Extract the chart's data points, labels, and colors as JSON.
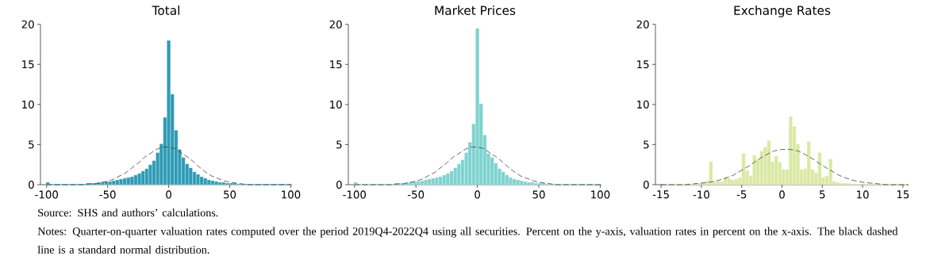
{
  "chart_data": [
    {
      "type": "histogram",
      "title": "Total",
      "xlim": [
        -105,
        101
      ],
      "xticks": [
        -100,
        -50,
        0,
        50,
        100
      ],
      "ylim": [
        0,
        20
      ],
      "yticks": [
        0,
        5,
        10,
        15,
        20
      ],
      "annotations": [
        "Source: SHS and authors’ calculations.",
        "Notes: Quarter-on-quarter valuation rates computed over the period 2019Q4-2022Q4 using all securities. Percent on the y-axis, valuation rates in percent on the x-axis. The black dashed line is a standard normal distribution."
      ],
      "series": [
        {
          "color": "#2f9bb5",
          "bins": [
            -100.5,
            -97.5,
            -94.5,
            -91.5,
            -88.5,
            -85.5,
            -82.5,
            -79.5,
            -76.5,
            -73.5,
            -70.5,
            -67.5,
            -64.5,
            -61.5,
            -58.5,
            -55.5,
            -52.5,
            -49.5,
            -46.5,
            -43.5,
            -40.5,
            -37.5,
            -34.5,
            -31.5,
            -28.5,
            -25.5,
            -22.5,
            -19.5,
            -16.5,
            -13.5,
            -10.5,
            -7.5,
            -4.5,
            -1.5,
            1.5,
            4.5,
            7.5,
            10.5,
            13.5,
            16.5,
            19.5,
            22.5,
            25.5,
            28.5,
            31.5,
            34.5,
            37.5,
            40.5,
            43.5,
            46.5,
            49.5,
            52.5,
            55.5,
            58.5,
            61.5,
            64.5,
            67.5,
            70.5,
            73.5,
            76.5,
            79.5,
            82.5,
            85.5,
            88.5,
            91.5,
            94.5,
            97.5,
            100.5
          ],
          "values": [
            0.3,
            0.1,
            0.1,
            0.1,
            0.1,
            0.1,
            0.1,
            0.1,
            0.1,
            0.1,
            0.1,
            0.2,
            0.2,
            0.2,
            0.3,
            0.3,
            0.4,
            0.4,
            0.5,
            0.6,
            0.7,
            0.8,
            0.9,
            1.0,
            1.2,
            1.4,
            1.7,
            2.0,
            2.5,
            3.0,
            4.0,
            5.1,
            8.4,
            18.0,
            11.3,
            6.8,
            4.4,
            3.4,
            2.6,
            2.1,
            1.6,
            1.3,
            1.0,
            0.8,
            0.6,
            0.5,
            0.4,
            0.3,
            0.3,
            0.2,
            0.2,
            0.2,
            0.1,
            0.1,
            0.1,
            0.1,
            0.1,
            0.1,
            0.1,
            0.1,
            0.1,
            0.1,
            0.1,
            0.1,
            0.1,
            0.1,
            0.1
          ]
        },
        {
          "type": "line",
          "color": "#404040",
          "line_style": "dashed",
          "x": [
            -100,
            -80,
            -70,
            -65,
            -60,
            -55,
            -50,
            -45,
            -40,
            -35,
            -30,
            -25,
            -20,
            -15,
            -10,
            -5,
            -2,
            0,
            5,
            10,
            15,
            20,
            25,
            30,
            35,
            40,
            45,
            50,
            55,
            60,
            65,
            70,
            80,
            100
          ],
          "values": [
            0.0,
            0.0,
            0.0,
            0.1,
            0.1,
            0.3,
            0.4,
            0.7,
            1.1,
            1.5,
            2.1,
            2.7,
            3.4,
            3.9,
            4.4,
            4.7,
            4.7,
            4.7,
            4.5,
            4.0,
            3.5,
            2.9,
            2.2,
            1.6,
            1.1,
            0.8,
            0.5,
            0.3,
            0.2,
            0.1,
            0.0,
            0.0,
            0.0,
            0.0
          ]
        }
      ]
    },
    {
      "type": "histogram",
      "title": "Market Prices",
      "xlim": [
        -105,
        101
      ],
      "xticks": [
        -100,
        -50,
        0,
        50,
        100
      ],
      "ylim": [
        0,
        20
      ],
      "yticks": [
        0,
        5,
        10,
        15,
        20
      ],
      "series": [
        {
          "color": "#7ed3cf",
          "bins": [
            -100.5,
            -97.5,
            -94.5,
            -91.5,
            -88.5,
            -85.5,
            -82.5,
            -79.5,
            -76.5,
            -73.5,
            -70.5,
            -67.5,
            -64.5,
            -61.5,
            -58.5,
            -55.5,
            -52.5,
            -49.5,
            -46.5,
            -43.5,
            -40.5,
            -37.5,
            -34.5,
            -31.5,
            -28.5,
            -25.5,
            -22.5,
            -19.5,
            -16.5,
            -13.5,
            -10.5,
            -7.5,
            -4.5,
            -1.5,
            1.5,
            4.5,
            7.5,
            10.5,
            13.5,
            16.5,
            19.5,
            22.5,
            25.5,
            28.5,
            31.5,
            34.5,
            37.5,
            40.5,
            43.5,
            46.5,
            49.5,
            52.5,
            55.5,
            58.5,
            61.5,
            64.5,
            67.5,
            70.5,
            73.5,
            76.5,
            79.5,
            82.5,
            85.5,
            88.5,
            91.5,
            94.5,
            97.5,
            100.5
          ],
          "values": [
            0.3,
            0.1,
            0.1,
            0.1,
            0.1,
            0.1,
            0.1,
            0.1,
            0.1,
            0.1,
            0.1,
            0.2,
            0.2,
            0.2,
            0.3,
            0.3,
            0.4,
            0.4,
            0.5,
            0.6,
            0.7,
            0.8,
            0.9,
            1.0,
            1.2,
            1.4,
            1.7,
            2.1,
            2.6,
            3.1,
            4.0,
            5.3,
            7.6,
            19.5,
            10.1,
            6.2,
            3.9,
            3.4,
            2.7,
            2.0,
            1.6,
            1.2,
            0.9,
            0.7,
            0.6,
            0.5,
            0.4,
            0.3,
            0.3,
            0.2,
            0.2,
            0.2,
            0.1,
            0.1,
            0.1,
            0.1,
            0.1,
            0.1,
            0.1,
            0.1,
            0.1,
            0.1,
            0.1,
            0.1,
            0.1,
            0.1,
            0.1
          ]
        },
        {
          "type": "line",
          "color": "#404040",
          "line_style": "dashed",
          "x": [
            -100,
            -80,
            -70,
            -65,
            -60,
            -55,
            -50,
            -45,
            -40,
            -35,
            -30,
            -25,
            -20,
            -15,
            -10,
            -5,
            -2,
            0,
            5,
            10,
            15,
            20,
            25,
            30,
            35,
            40,
            45,
            50,
            55,
            60,
            65,
            70,
            80,
            100
          ],
          "values": [
            0.0,
            0.0,
            0.0,
            0.1,
            0.1,
            0.3,
            0.4,
            0.7,
            1.1,
            1.5,
            2.1,
            2.7,
            3.4,
            3.9,
            4.4,
            4.7,
            4.7,
            4.7,
            4.5,
            4.0,
            3.5,
            2.9,
            2.2,
            1.6,
            1.1,
            0.8,
            0.5,
            0.3,
            0.2,
            0.1,
            0.0,
            0.0,
            0.0,
            0.0
          ]
        }
      ]
    },
    {
      "type": "histogram",
      "title": "Exchange Rates",
      "xlim": [
        -15.7,
        15.7
      ],
      "xticks": [
        -15,
        -10,
        -5,
        0,
        5,
        10,
        15
      ],
      "ylim": [
        0,
        20
      ],
      "yticks": [
        0,
        5,
        10,
        15,
        20
      ],
      "series": [
        {
          "color": "#dbe8a3",
          "bins": [
            -14.9,
            -14.45,
            -14.0,
            -13.55,
            -13.1,
            -12.65,
            -12.2,
            -11.75,
            -11.3,
            -10.85,
            -10.4,
            -9.95,
            -9.5,
            -9.05,
            -8.6,
            -8.15,
            -7.7,
            -7.25,
            -6.8,
            -6.35,
            -5.9,
            -5.45,
            -5.0,
            -4.55,
            -4.1,
            -3.65,
            -3.2,
            -2.75,
            -2.3,
            -1.85,
            -1.4,
            -0.95,
            -0.5,
            -0.05,
            0.4,
            0.85,
            1.3,
            1.75,
            2.2,
            2.65,
            3.1,
            3.55,
            4.0,
            4.45,
            4.9,
            5.35,
            5.8,
            6.25,
            6.7,
            7.15,
            7.6,
            8.05,
            8.5,
            8.95,
            9.4,
            9.85,
            10.3,
            10.75,
            11.2,
            11.65,
            12.1,
            12.55,
            13.0,
            13.45,
            13.9,
            14.35,
            14.8,
            15.25,
            15.7
          ],
          "values": [
            0.1,
            0.1,
            0.1,
            0.1,
            0.1,
            0.1,
            0.1,
            0.1,
            0.1,
            0.2,
            0.2,
            0.3,
            0.5,
            2.9,
            0.4,
            0.4,
            0.4,
            1.0,
            0.8,
            0.6,
            0.7,
            0.9,
            3.9,
            1.8,
            1.1,
            3.7,
            3.2,
            4.2,
            4.7,
            5.5,
            2.9,
            3.6,
            2.8,
            1.9,
            1.9,
            8.5,
            7.3,
            5.1,
            1.9,
            2.0,
            5.4,
            1.9,
            1.5,
            4.0,
            0.9,
            1.1,
            3.2,
            0.4,
            0.3,
            0.2,
            0.2,
            0.2,
            0.1,
            0.1,
            0.1,
            0.1,
            0.1,
            0.1,
            0.1,
            0.1,
            0.1,
            0.1,
            0.1,
            0.1,
            0.1,
            0.1,
            0.1,
            0.1
          ]
        },
        {
          "type": "line",
          "color": "#404040",
          "line_style": "dashed",
          "x": [
            -15,
            -12,
            -11,
            -10,
            -9,
            -8,
            -7,
            -6,
            -5,
            -4,
            -3,
            -2,
            -1,
            0,
            0.5,
            1,
            2,
            3,
            4,
            5,
            6,
            7,
            8,
            9,
            10,
            11,
            12,
            13,
            15.7
          ],
          "values": [
            0.0,
            0.0,
            0.1,
            0.2,
            0.3,
            0.5,
            0.8,
            1.2,
            1.8,
            2.4,
            3.1,
            3.7,
            4.2,
            4.4,
            4.4,
            4.4,
            4.2,
            3.7,
            3.1,
            2.4,
            1.8,
            1.2,
            0.8,
            0.5,
            0.3,
            0.2,
            0.1,
            0.0,
            0.0
          ]
        }
      ]
    }
  ]
}
